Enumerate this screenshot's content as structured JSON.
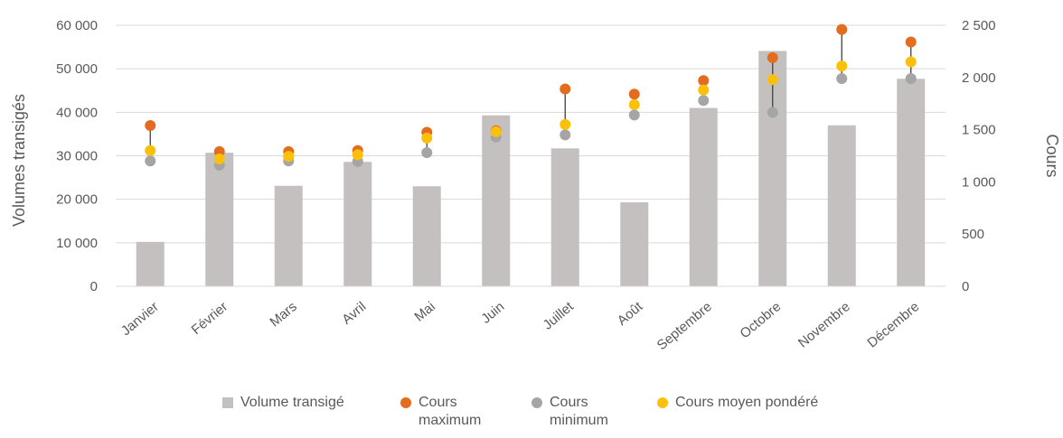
{
  "chart_data": {
    "type": "bar",
    "categories": [
      "Janvier",
      "Février",
      "Mars",
      "Avril",
      "Mai",
      "Juin",
      "Juillet",
      "Août",
      "Septembre",
      "Octobre",
      "Novembre",
      "Décembre"
    ],
    "series": [
      {
        "name": "Volume transigé",
        "type": "bar",
        "axis": "left",
        "values": [
          10200,
          30700,
          23100,
          28600,
          23000,
          39300,
          31700,
          19300,
          41000,
          54100,
          37000,
          47700
        ]
      },
      {
        "name": "Cours maximum",
        "type": "scatter",
        "axis": "right",
        "values": [
          1540,
          1290,
          1290,
          1300,
          1475,
          1490,
          1890,
          1840,
          1970,
          2190,
          2460,
          2340
        ]
      },
      {
        "name": "Cours minimum",
        "type": "scatter",
        "axis": "right",
        "values": [
          1200,
          1160,
          1200,
          1195,
          1280,
          1430,
          1450,
          1640,
          1780,
          1665,
          1990,
          1990
        ]
      },
      {
        "name": "Cours moyen pondéré",
        "type": "scatter",
        "axis": "right",
        "values": [
          1300,
          1220,
          1245,
          1260,
          1420,
          1480,
          1550,
          1740,
          1880,
          1980,
          2110,
          2150
        ]
      }
    ],
    "ylabel": "Volumes transigés",
    "y2label": "Cours",
    "ylim": [
      0,
      60000
    ],
    "y2lim": [
      0,
      2500
    ],
    "yticks": [
      "0",
      "10 000",
      "20 000",
      "30 000",
      "40 000",
      "50 000",
      "60 000"
    ],
    "y2ticks": [
      "0",
      "500",
      "1 000",
      "1 500",
      "2 000",
      "2 500"
    ],
    "grid": true,
    "legend_position": "bottom",
    "colors": {
      "volume": "#c4c0c0",
      "max": "#e46c1f",
      "min": "#a5a5a5",
      "avg": "#fbc10a",
      "range_line": "#404040",
      "grid": "#d9d9d9"
    }
  },
  "legend": {
    "volume_label": "Volume transigé",
    "max_label_line1": "Cours",
    "max_label_line2": "maximum",
    "min_label_line1": "Cours",
    "min_label_line2": "minimum",
    "avg_label": "Cours moyen pondéré"
  }
}
